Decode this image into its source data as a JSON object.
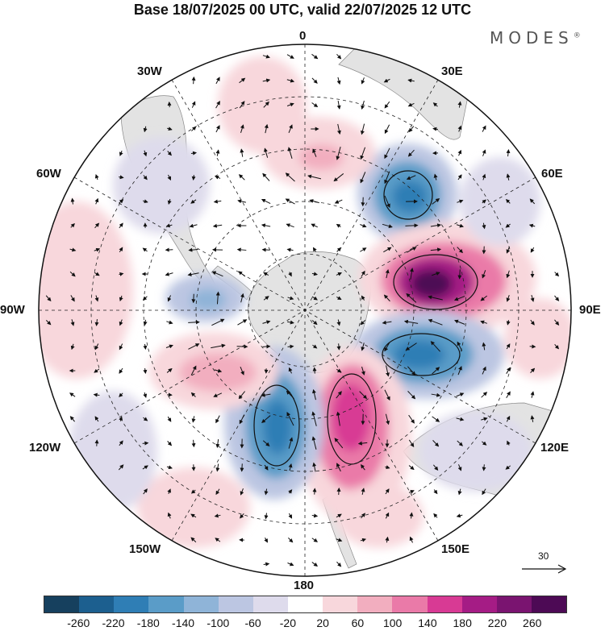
{
  "title": "Base 18/07/2025 00 UTC, valid 22/07/2025 12 UTC",
  "logo": "MODES",
  "logo_mark": "®",
  "longitude_labels": {
    "top": "0",
    "top_right": "30E",
    "right_upper": "60E",
    "right": "90E",
    "right_lower": "120E",
    "bottom_right": "150E",
    "bottom": "180",
    "bottom_left": "150W",
    "left_lower": "120W",
    "left": "90W",
    "left_upper": "60W",
    "top_left": "30W"
  },
  "reference_vector": {
    "value": "30"
  },
  "colorbar": {
    "ticks": [
      "-260",
      "-220",
      "-180",
      "-140",
      "-100",
      "-60",
      "-20",
      "20",
      "60",
      "100",
      "140",
      "180",
      "220",
      "260"
    ],
    "colors": [
      "#16405e",
      "#1c5f8f",
      "#2f7eb5",
      "#5a9cc8",
      "#8fb4d8",
      "#bcc6e2",
      "#dedbec",
      "#ffffff",
      "#f8d7dc",
      "#f2aebf",
      "#ea7aa8",
      "#d83a94",
      "#a51c85",
      "#7a1470",
      "#4d0a55"
    ]
  },
  "map": {
    "projection": "south-polar-stereographic",
    "anomaly_centers": [
      {
        "lon_label": "45E",
        "sign": "negative",
        "value": -180
      },
      {
        "lon_label": "80E",
        "sign": "positive",
        "value": 260
      },
      {
        "lon_label": "105E",
        "sign": "negative",
        "value": -180
      },
      {
        "lon_label": "160E",
        "sign": "positive",
        "value": 220
      },
      {
        "lon_label": "155W",
        "sign": "negative",
        "value": -180
      },
      {
        "lon_label": "110W",
        "sign": "positive",
        "value": 100
      },
      {
        "lon_label": "80W",
        "sign": "negative",
        "value": -100
      },
      {
        "lon_label": "10E",
        "sign": "positive",
        "value": 100
      }
    ]
  }
}
